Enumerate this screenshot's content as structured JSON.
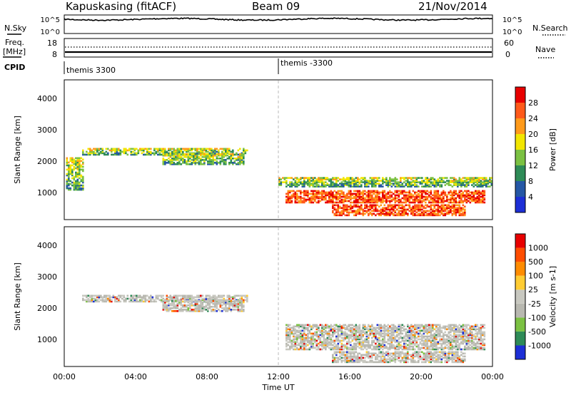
{
  "header": {
    "station": "Kapuskasing (fitACF)",
    "beam": "Beam 09",
    "date": "21/Nov/2014"
  },
  "nsky": {
    "label": "N.Sky",
    "right_label": "N.Search",
    "ticks": [
      "10^5",
      "10^0"
    ],
    "right_ticks": [
      "10^5",
      "10^0"
    ]
  },
  "freq": {
    "label_top": "Freq.",
    "label_unit": "[MHz]",
    "ticks": [
      "18",
      "8"
    ],
    "right_ticks": [
      "60",
      "0"
    ],
    "right_label": "Nave"
  },
  "cpid": {
    "label": "CPID",
    "segments": [
      {
        "name": "themis 3300",
        "start": 0,
        "end": 12
      },
      {
        "name": "themis -3300",
        "start": 12,
        "end": 24
      }
    ]
  },
  "chart_data": [
    {
      "type": "heatmap",
      "panel": "power",
      "ylabel": "Slant Range [km]",
      "ylim": [
        180,
        4560
      ],
      "yticks": [
        "1000",
        "2000",
        "3000",
        "4000"
      ],
      "xlim": [
        0,
        24
      ],
      "colorbar": {
        "label": "Power [dB]",
        "levels": [
          "4",
          "8",
          "12",
          "16",
          "20",
          "24",
          "28"
        ],
        "colors": [
          "#1d2fd6",
          "#2557a5",
          "#2e8b57",
          "#7bc142",
          "#f2e600",
          "#ff9a1a",
          "#ff5a1a",
          "#e80000"
        ]
      },
      "echo_regions": [
        {
          "t0": 0.1,
          "t1": 1.0,
          "r0": 1100,
          "r1": 2100
        },
        {
          "t0": 1.0,
          "t1": 10.2,
          "r0": 2200,
          "r1": 2400
        },
        {
          "t0": 5.5,
          "t1": 10.0,
          "r0": 1900,
          "r1": 2250
        },
        {
          "t0": 12.0,
          "t1": 24.0,
          "r0": 1200,
          "r1": 1500
        },
        {
          "t0": 12.4,
          "t1": 23.6,
          "r0": 700,
          "r1": 1100
        },
        {
          "t0": 15.0,
          "t1": 22.5,
          "r0": 300,
          "r1": 650
        }
      ]
    },
    {
      "type": "heatmap",
      "panel": "velocity",
      "ylabel": "Slant Range [km]",
      "ylim": [
        180,
        4560
      ],
      "yticks": [
        "1000",
        "2000",
        "3000",
        "4000"
      ],
      "xlim": [
        0,
        24
      ],
      "xticks": [
        "00:00",
        "04:00",
        "08:00",
        "12:00",
        "16:00",
        "20:00",
        "00:00"
      ],
      "xlabel": "Time UT",
      "colorbar": {
        "label": "Velocity [m s-1]",
        "levels": [
          "1000",
          "500",
          "100",
          "25",
          "-25",
          "-100",
          "-500",
          "-1000"
        ],
        "colors": [
          "#1d2fd6",
          "#2e8b57",
          "#7bc142",
          "#b8b8b0",
          "#c8c8c0",
          "#ffcc33",
          "#ff8c00",
          "#ff4d00",
          "#e80000"
        ]
      },
      "echo_regions": [
        {
          "t0": 1.0,
          "t1": 10.2,
          "r0": 2200,
          "r1": 2400
        },
        {
          "t0": 5.5,
          "t1": 10.0,
          "r0": 1900,
          "r1": 2250
        },
        {
          "t0": 12.4,
          "t1": 23.6,
          "r0": 700,
          "r1": 1500
        },
        {
          "t0": 15.0,
          "t1": 22.5,
          "r0": 300,
          "r1": 650
        }
      ]
    }
  ]
}
